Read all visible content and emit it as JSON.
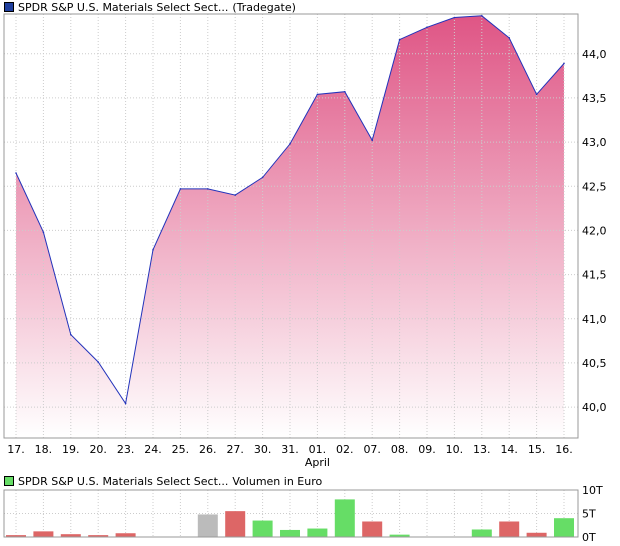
{
  "price_chart": {
    "legend": {
      "name": "SPDR S&P U.S. Materials Select Sect...",
      "exchange": "(Tradegate)",
      "color": "#1f3f9e"
    },
    "line_color": "#2233bb",
    "fill_top_color": "#df5585",
    "fill_bottom_color": "#ffffff",
    "chart_data": {
      "type": "area",
      "x": [
        "17.",
        "18.",
        "19.",
        "20.",
        "23.",
        "24.",
        "25.",
        "26.",
        "27.",
        "30.",
        "31.",
        "01.",
        "02.",
        "07.",
        "08.",
        "09.",
        "10.",
        "13.",
        "14.",
        "15.",
        "16."
      ],
      "values": [
        42.65,
        41.98,
        40.82,
        40.51,
        40.04,
        41.78,
        42.47,
        42.47,
        42.4,
        42.6,
        42.98,
        43.54,
        43.57,
        43.02,
        44.16,
        44.3,
        44.41,
        44.43,
        44.18,
        43.54,
        43.89
      ],
      "ylim": [
        39.65,
        44.45
      ],
      "yticks": [
        40.0,
        40.5,
        41.0,
        41.5,
        42.0,
        42.5,
        43.0,
        43.5,
        44.0
      ],
      "ytick_labels": [
        "40,0",
        "40,5",
        "41,0",
        "41,5",
        "42,0",
        "42,5",
        "43,0",
        "43,5",
        "44,0"
      ],
      "month_label": "April",
      "month_label_index": 11,
      "grid": true
    }
  },
  "volume_chart": {
    "legend": {
      "name": "SPDR S&P U.S. Materials Select Sect...",
      "metric": "Volumen in Euro",
      "color": "#66dd66"
    },
    "chart_data": {
      "type": "bar",
      "categories": [
        "17.",
        "18.",
        "19.",
        "20.",
        "23.",
        "24.",
        "25.",
        "26.",
        "27.",
        "30.",
        "31.",
        "01.",
        "02.",
        "07.",
        "08.",
        "09.",
        "10.",
        "13.",
        "14.",
        "15.",
        "16."
      ],
      "values": [
        0.4,
        1.2,
        0.6,
        0.4,
        0.8,
        0,
        0,
        4.8,
        5.5,
        3.5,
        1.5,
        1.8,
        8.0,
        3.3,
        0.5,
        0,
        0,
        1.6,
        3.3,
        0.9,
        4.0
      ],
      "colors": [
        "#dd6666",
        "#dd6666",
        "#dd6666",
        "#dd6666",
        "#dd6666",
        "#dd6666",
        "#dd6666",
        "#bbbbbb",
        "#dd6666",
        "#66dd66",
        "#66dd66",
        "#66dd66",
        "#66dd66",
        "#dd6666",
        "#66dd66",
        "#66dd66",
        "#66dd66",
        "#66dd66",
        "#dd6666",
        "#dd6666",
        "#66dd66"
      ],
      "ylim": [
        0,
        10
      ],
      "yticks": [
        0,
        5,
        10
      ],
      "ytick_labels": [
        "0T",
        "5T",
        "10T"
      ],
      "grid": true
    }
  }
}
